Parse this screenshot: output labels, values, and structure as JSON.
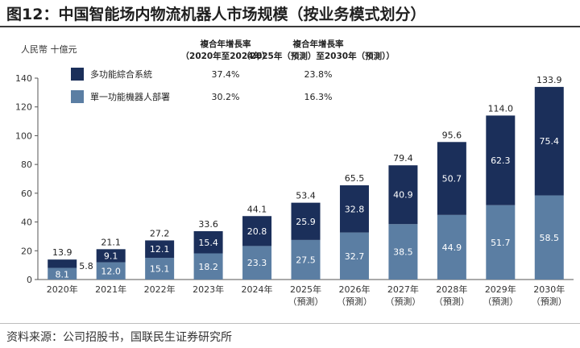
{
  "title": "图12：中国智能场内物流机器人市场规模（按业务模式划分）",
  "source": "资料来源：公司招股书，国联民生证券研究所",
  "colors": {
    "series0": "#1b2f5a",
    "series1": "#5b7ea3",
    "axis": "#555555"
  },
  "chart_data": {
    "type": "bar",
    "stacked": true,
    "ylabel": "人民幣 十億元",
    "ylim": [
      0,
      140
    ],
    "yticks": [
      0,
      20,
      40,
      60,
      80,
      100,
      120,
      140
    ],
    "grid": false,
    "categories": [
      [
        "2020年"
      ],
      [
        "2021年"
      ],
      [
        "2022年"
      ],
      [
        "2023年"
      ],
      [
        "2024年"
      ],
      [
        "2025年",
        "（預測）"
      ],
      [
        "2026年",
        "（預測）"
      ],
      [
        "2027年",
        "（預測）"
      ],
      [
        "2028年",
        "（預測）"
      ],
      [
        "2029年",
        "（預測）"
      ],
      [
        "2030年",
        "（預測）"
      ]
    ],
    "series": [
      {
        "name": "單一功能機器人部署",
        "values": [
          8.1,
          12.0,
          15.1,
          18.2,
          23.3,
          27.5,
          32.7,
          38.5,
          44.9,
          51.7,
          58.5
        ]
      },
      {
        "name": "多功能綜合系統",
        "values": [
          5.8,
          9.1,
          12.1,
          15.4,
          20.8,
          25.9,
          32.8,
          40.9,
          50.7,
          62.3,
          75.4
        ]
      }
    ],
    "totals": [
      13.9,
      21.1,
      27.2,
      33.6,
      44.1,
      53.4,
      65.5,
      79.4,
      95.6,
      114.0,
      133.9
    ],
    "legend": {
      "placement": "top-left",
      "cagr_headers": [
        [
          "複合年增長率",
          "（2020年至2024年）"
        ],
        [
          "複合年增長率",
          "（2025年（預測）至2030年（預測））"
        ]
      ],
      "rows": [
        {
          "series": "多功能綜合系統",
          "cagr1": "37.4%",
          "cagr2": "23.8%"
        },
        {
          "series": "單一功能機器人部署",
          "cagr1": "30.2%",
          "cagr2": "16.3%"
        }
      ]
    }
  }
}
